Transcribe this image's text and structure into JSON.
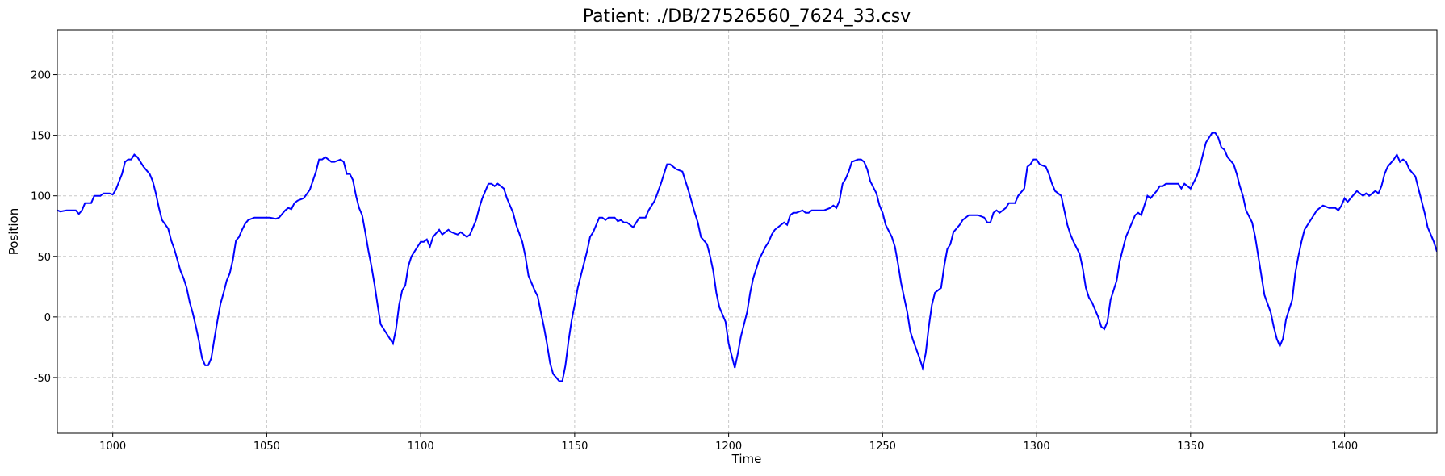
{
  "chart_data": {
    "type": "line",
    "title": "Patient: ./DB/27526560_7624_33.csv",
    "x_label": "Time",
    "y_label": "Position",
    "x": [
      982,
      983,
      985,
      988,
      989,
      990,
      991,
      993,
      994,
      996,
      997,
      999,
      1000,
      1001,
      1003,
      1004,
      1005,
      1006,
      1007,
      1008,
      1009,
      1010,
      1012,
      1013,
      1014,
      1015,
      1016,
      1018,
      1019,
      1020,
      1022,
      1023,
      1024,
      1025,
      1026,
      1027,
      1028,
      1029,
      1030,
      1031,
      1032,
      1033,
      1034,
      1035,
      1036,
      1037,
      1038,
      1039,
      1040,
      1041,
      1042,
      1043,
      1044,
      1046,
      1048,
      1051,
      1053,
      1054,
      1056,
      1057,
      1058,
      1059,
      1060,
      1062,
      1064,
      1066,
      1067,
      1068,
      1069,
      1071,
      1072,
      1074,
      1075,
      1076,
      1077,
      1078,
      1079,
      1080,
      1081,
      1082,
      1083,
      1084,
      1085,
      1086,
      1087,
      1088,
      1090,
      1091,
      1092,
      1093,
      1094,
      1095,
      1096,
      1097,
      1098,
      1100,
      1101,
      1102,
      1103,
      1104,
      1106,
      1107,
      1109,
      1110,
      1112,
      1113,
      1115,
      1116,
      1118,
      1119,
      1120,
      1122,
      1123,
      1124,
      1125,
      1127,
      1128,
      1129,
      1130,
      1131,
      1133,
      1134,
      1135,
      1137,
      1138,
      1139,
      1140,
      1141,
      1142,
      1143,
      1145,
      1146,
      1147,
      1148,
      1149,
      1150,
      1151,
      1152,
      1154,
      1155,
      1156,
      1157,
      1158,
      1159,
      1160,
      1161,
      1163,
      1164,
      1165,
      1166,
      1167,
      1169,
      1170,
      1171,
      1173,
      1174,
      1175,
      1176,
      1178,
      1179,
      1180,
      1181,
      1183,
      1185,
      1186,
      1187,
      1189,
      1190,
      1191,
      1193,
      1194,
      1195,
      1196,
      1197,
      1199,
      1200,
      1202,
      1203,
      1204,
      1206,
      1207,
      1208,
      1209,
      1210,
      1212,
      1213,
      1214,
      1215,
      1216,
      1218,
      1219,
      1220,
      1221,
      1222,
      1224,
      1225,
      1226,
      1227,
      1231,
      1233,
      1234,
      1235,
      1236,
      1237,
      1238,
      1239,
      1240,
      1242,
      1243,
      1244,
      1245,
      1246,
      1248,
      1249,
      1250,
      1251,
      1253,
      1254,
      1255,
      1256,
      1257,
      1258,
      1259,
      1260,
      1262,
      1263,
      1264,
      1265,
      1266,
      1267,
      1269,
      1270,
      1271,
      1272,
      1273,
      1275,
      1276,
      1277,
      1278,
      1281,
      1283,
      1284,
      1285,
      1286,
      1287,
      1288,
      1290,
      1291,
      1293,
      1294,
      1296,
      1297,
      1298,
      1299,
      1300,
      1301,
      1303,
      1304,
      1305,
      1306,
      1308,
      1309,
      1310,
      1311,
      1312,
      1314,
      1315,
      1316,
      1317,
      1318,
      1320,
      1321,
      1322,
      1323,
      1324,
      1326,
      1327,
      1328,
      1329,
      1330,
      1332,
      1333,
      1334,
      1335,
      1336,
      1337,
      1339,
      1340,
      1341,
      1342,
      1346,
      1347,
      1348,
      1349,
      1350,
      1352,
      1353,
      1354,
      1355,
      1357,
      1358,
      1359,
      1360,
      1361,
      1362,
      1364,
      1365,
      1366,
      1367,
      1368,
      1370,
      1371,
      1372,
      1373,
      1374,
      1376,
      1377,
      1378,
      1379,
      1380,
      1381,
      1383,
      1384,
      1385,
      1386,
      1387,
      1389,
      1390,
      1391,
      1392,
      1393,
      1395,
      1397,
      1398,
      1399,
      1400,
      1401,
      1402,
      1404,
      1405,
      1406,
      1407,
      1408,
      1410,
      1411,
      1412,
      1413,
      1414,
      1416,
      1417,
      1418,
      1419,
      1420,
      1421,
      1423,
      1424,
      1425,
      1426,
      1427,
      1429,
      1430
    ],
    "values": [
      88,
      87,
      88,
      88,
      85,
      88,
      94,
      94,
      100,
      100,
      102,
      102,
      101,
      105,
      118,
      128,
      130,
      130,
      134,
      132,
      128,
      124,
      118,
      112,
      102,
      90,
      80,
      73,
      63,
      56,
      38,
      32,
      24,
      12,
      3,
      -8,
      -20,
      -34,
      -40,
      -40,
      -34,
      -18,
      -3,
      11,
      20,
      30,
      36,
      47,
      63,
      66,
      72,
      77,
      80,
      82,
      82,
      82,
      81,
      82,
      88,
      90,
      89,
      94,
      96,
      98,
      105,
      120,
      130,
      130,
      132,
      128,
      128,
      130,
      128,
      118,
      118,
      113,
      100,
      90,
      84,
      70,
      55,
      42,
      27,
      10,
      -6,
      -10,
      -18,
      -22,
      -10,
      10,
      22,
      26,
      42,
      50,
      54,
      62,
      62,
      64,
      58,
      66,
      72,
      68,
      72,
      70,
      68,
      70,
      66,
      68,
      80,
      90,
      98,
      110,
      110,
      108,
      110,
      106,
      98,
      92,
      86,
      76,
      62,
      50,
      34,
      22,
      17,
      4,
      -8,
      -22,
      -38,
      -47,
      -53,
      -53,
      -40,
      -20,
      -3,
      10,
      24,
      34,
      54,
      66,
      70,
      76,
      82,
      82,
      80,
      82,
      82,
      79,
      80,
      78,
      78,
      74,
      78,
      82,
      82,
      88,
      92,
      96,
      110,
      118,
      126,
      126,
      122,
      120,
      112,
      104,
      86,
      78,
      66,
      60,
      50,
      38,
      20,
      8,
      -4,
      -22,
      -42,
      -30,
      -16,
      4,
      20,
      32,
      40,
      48,
      58,
      62,
      68,
      72,
      74,
      78,
      76,
      84,
      86,
      86,
      88,
      86,
      86,
      88,
      88,
      90,
      92,
      90,
      96,
      110,
      114,
      120,
      128,
      130,
      130,
      128,
      122,
      112,
      102,
      92,
      86,
      76,
      66,
      58,
      44,
      28,
      16,
      4,
      -12,
      -20,
      -34,
      -42,
      -30,
      -8,
      10,
      20,
      24,
      42,
      56,
      60,
      70,
      76,
      80,
      82,
      84,
      84,
      82,
      78,
      78,
      86,
      88,
      86,
      90,
      94,
      94,
      100,
      106,
      124,
      126,
      130,
      130,
      126,
      124,
      118,
      110,
      104,
      100,
      88,
      76,
      68,
      62,
      52,
      40,
      24,
      16,
      12,
      0,
      -8,
      -10,
      -4,
      14,
      30,
      46,
      56,
      66,
      72,
      84,
      86,
      84,
      92,
      100,
      98,
      104,
      108,
      108,
      110,
      110,
      106,
      110,
      108,
      106,
      116,
      124,
      134,
      144,
      152,
      152,
      148,
      140,
      138,
      132,
      126,
      118,
      108,
      100,
      88,
      78,
      66,
      50,
      34,
      18,
      4,
      -8,
      -18,
      -24,
      -18,
      -2,
      14,
      36,
      50,
      62,
      72,
      80,
      84,
      88,
      90,
      92,
      90,
      90,
      88,
      92,
      98,
      95,
      98,
      104,
      102,
      100,
      102,
      100,
      104,
      102,
      108,
      118,
      124,
      130,
      134,
      128,
      130,
      128,
      122,
      116,
      106,
      96,
      86,
      74,
      62,
      54
    ],
    "color": "#0000ff",
    "xlim": [
      982,
      1430
    ],
    "ylim": [
      -96,
      237
    ],
    "xticks": [
      1000,
      1050,
      1100,
      1150,
      1200,
      1250,
      1300,
      1350,
      1400
    ],
    "yticks": [
      -50,
      0,
      50,
      100,
      150,
      200
    ],
    "grid": true
  }
}
